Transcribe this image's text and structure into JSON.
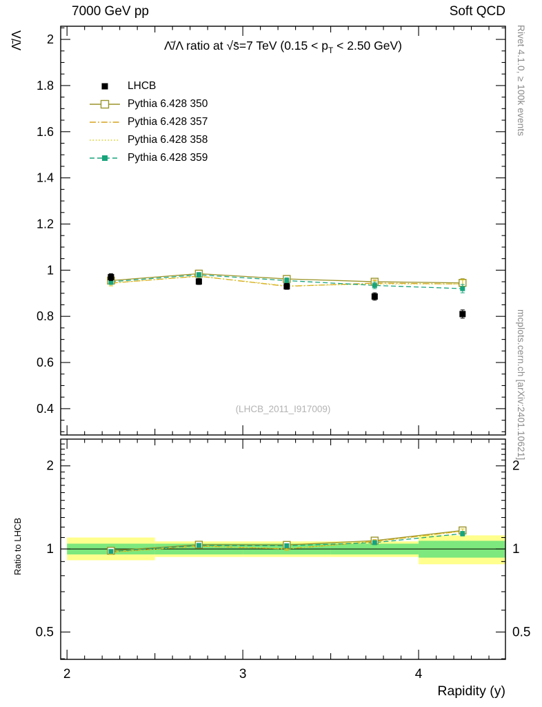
{
  "header": {
    "left": "7000 GeV pp",
    "right": "Soft QCD"
  },
  "side_labels": {
    "rivet": "Rivet 4.1.0, ≥ 100k events",
    "mcplots": "mcplots.cern.ch [arXiv:2401.10621]"
  },
  "watermark": "(LHCB_2011_I917009)",
  "title_parts": {
    "pre": "Λ̄/Λ ratio at √s̄=7 TeV (0.15 < p",
    "sub": "T",
    "post": " < 2.50 GeV)"
  },
  "chart_data": {
    "type": "line",
    "title": "Λ̄/Λ ratio at √s=7 TeV (0.15 < pT < 2.50 GeV)",
    "xlabel": "Rapidity (y)",
    "ylabel_main": "Λ̄/Λ",
    "ylabel_ratio": "Ratio to LHCB",
    "legend_position": "top-left inside plot",
    "grid": false,
    "x": [
      2.25,
      2.75,
      3.25,
      3.75,
      4.25
    ],
    "xlim": [
      1.964,
      4.494
    ],
    "xticks": [
      2,
      3,
      4
    ],
    "main_panel": {
      "scale": "linear",
      "ylim": [
        0.286,
        2.057
      ],
      "yticks": [
        0.4,
        0.6,
        0.8,
        1,
        1.2,
        1.4,
        1.6,
        1.8,
        2
      ],
      "reference": {
        "name": "LHCB",
        "color": "#000000",
        "marker": "filled-square",
        "msize": 9,
        "values": [
          0.97,
          0.951,
          0.93,
          0.886,
          0.81
        ],
        "errors": [
          0.015,
          0.013,
          0.013,
          0.016,
          0.018
        ]
      },
      "series": [
        {
          "name": "Pythia 6.428 350",
          "color": "#9a9428",
          "dash": "solid",
          "marker": "open-square",
          "msize": 10,
          "values": [
            0.955,
            0.985,
            0.962,
            0.95,
            0.945
          ],
          "errors": [
            0.012,
            0.01,
            0.012,
            0.014,
            0.018
          ]
        },
        {
          "name": "Pythia 6.428 357",
          "color": "#d6a31f",
          "dash": "dashdot",
          "marker": "none",
          "msize": 0,
          "values": [
            0.944,
            0.974,
            0.93,
            0.944,
            0.94
          ],
          "errors": [
            0.012,
            0.01,
            0.012,
            0.014,
            0.018
          ]
        },
        {
          "name": "Pythia 6.428 358",
          "color": "#d9ce24",
          "dash": "dot",
          "marker": "none",
          "msize": 0,
          "values": [
            0.944,
            0.974,
            0.932,
            0.94,
            0.94
          ],
          "errors": [
            0.012,
            0.01,
            0.012,
            0.014,
            0.018
          ]
        },
        {
          "name": "Pythia 6.428 359",
          "color": "#17a47b",
          "dash": "dash",
          "marker": "filled-square",
          "msize": 7,
          "values": [
            0.95,
            0.98,
            0.955,
            0.934,
            0.92
          ],
          "errors": [
            0.012,
            0.01,
            0.012,
            0.014,
            0.018
          ]
        }
      ]
    },
    "ratio_panel": {
      "scale": "log",
      "ylim": [
        0.398,
        2.5
      ],
      "yticks": [
        0.5,
        1,
        2
      ],
      "bands": {
        "bin_edges": [
          2,
          2.5,
          3,
          3.5,
          4,
          4.5
        ],
        "yellow": [
          [
            0.91,
            1.1
          ],
          [
            0.935,
            1.065
          ],
          [
            0.935,
            1.065
          ],
          [
            0.935,
            1.065
          ],
          [
            0.88,
            1.12
          ]
        ],
        "green": [
          [
            0.955,
            1.045
          ],
          [
            0.955,
            1.045
          ],
          [
            0.955,
            1.045
          ],
          [
            0.955,
            1.045
          ],
          [
            0.93,
            1.07
          ]
        ],
        "yellow_color": "#ffff8d",
        "green_color": "#7de87d"
      },
      "series": [
        {
          "name": "Pythia 6.428 350",
          "values": [
            0.985,
            1.036,
            1.034,
            1.072,
            1.167
          ],
          "errors": [
            0.015,
            0.012,
            0.013,
            0.016,
            0.022
          ]
        },
        {
          "name": "Pythia 6.428 357",
          "values": [
            0.973,
            1.024,
            1.0,
            1.065,
            1.16
          ],
          "errors": [
            0.015,
            0.012,
            0.013,
            0.016,
            0.022
          ]
        },
        {
          "name": "Pythia 6.428 358",
          "values": [
            0.973,
            1.024,
            1.002,
            1.061,
            1.16
          ],
          "errors": [
            0.015,
            0.012,
            0.013,
            0.016,
            0.022
          ]
        },
        {
          "name": "Pythia 6.428 359",
          "values": [
            0.979,
            1.03,
            1.027,
            1.054,
            1.136
          ],
          "errors": [
            0.015,
            0.012,
            0.013,
            0.016,
            0.022
          ]
        }
      ]
    }
  }
}
